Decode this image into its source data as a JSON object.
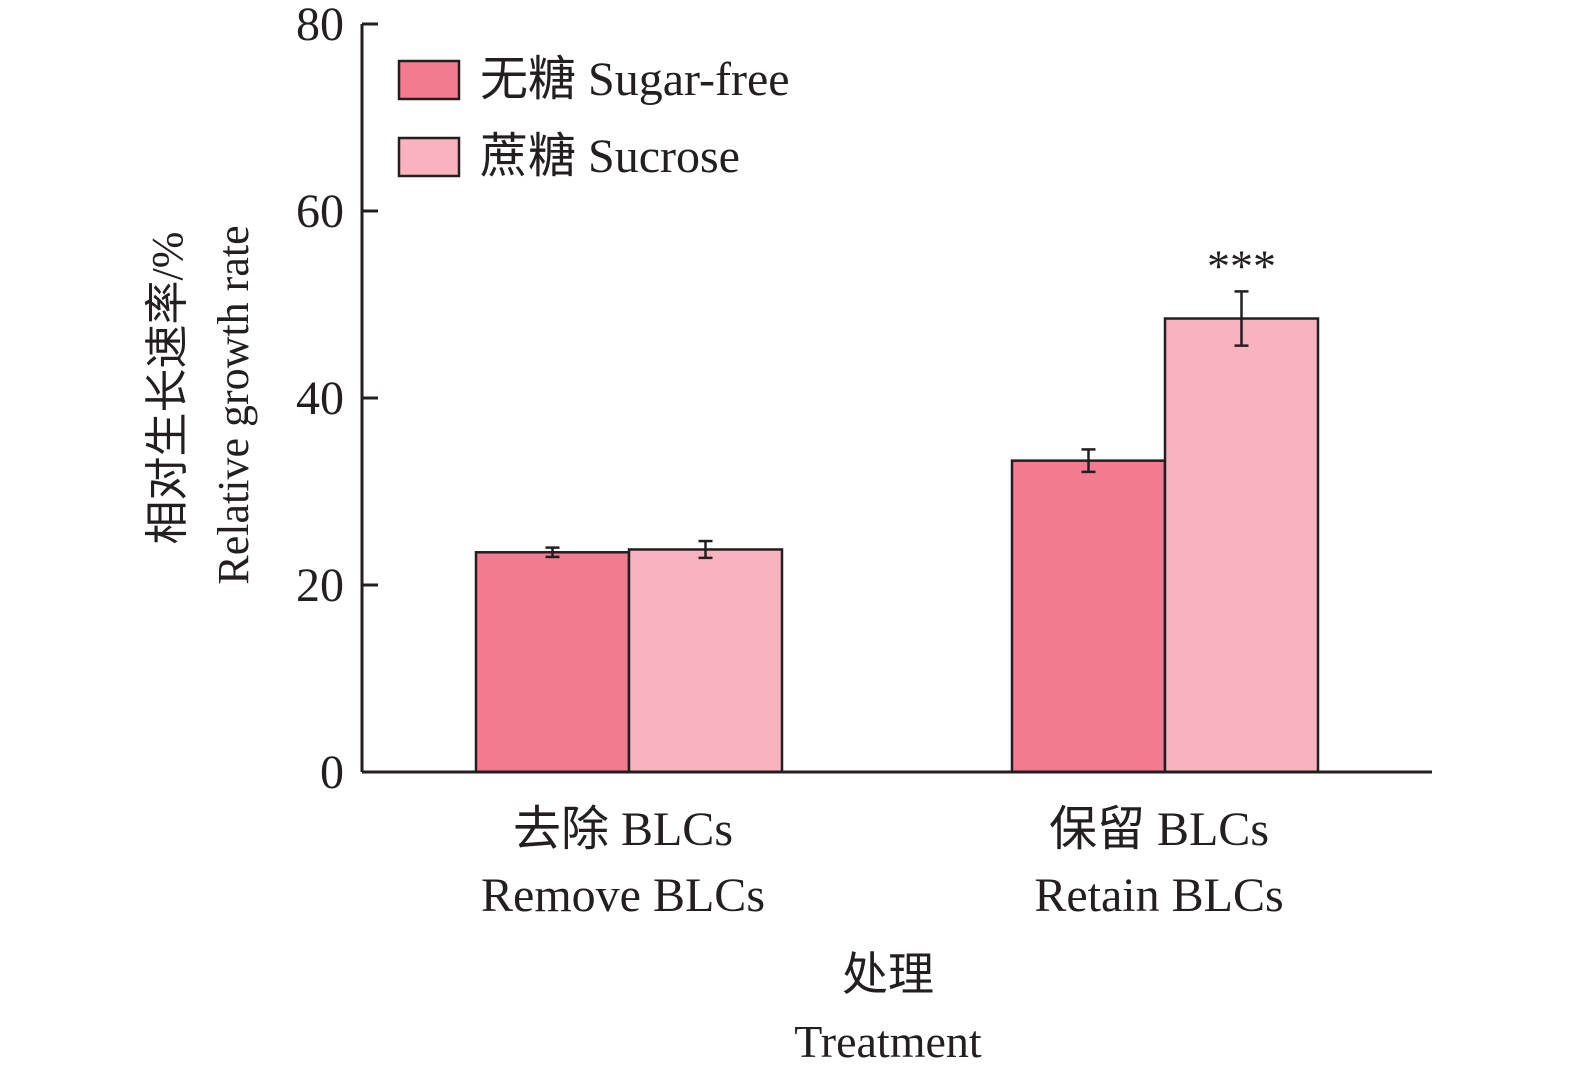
{
  "chart_data": {
    "type": "bar",
    "categories": [
      {
        "cn": "去除 BLCs",
        "en": "Remove BLCs"
      },
      {
        "cn": "保留 BLCs",
        "en": "Retain BLCs"
      }
    ],
    "series": [
      {
        "name": "无糖 Sugar-free",
        "color": "#f37b90",
        "values": [
          23.5,
          33.3
        ],
        "errors": [
          0.5,
          1.2
        ]
      },
      {
        "name": "蔗糖 Sucrose",
        "color": "#f8b3be",
        "values": [
          23.8,
          48.5
        ],
        "errors": [
          0.9,
          2.9
        ]
      }
    ],
    "annotations": [
      {
        "text": "***",
        "category_index": 1,
        "series_index": 1
      }
    ],
    "ylim": [
      0,
      80
    ],
    "yticks": [
      0,
      20,
      40,
      60,
      80
    ],
    "ylabel_cn": "相对生长速率/%",
    "ylabel_en": "Relative growth rate",
    "xlabel_cn": "处理",
    "xlabel_en": "Treatment",
    "legend_position": "top-left"
  }
}
